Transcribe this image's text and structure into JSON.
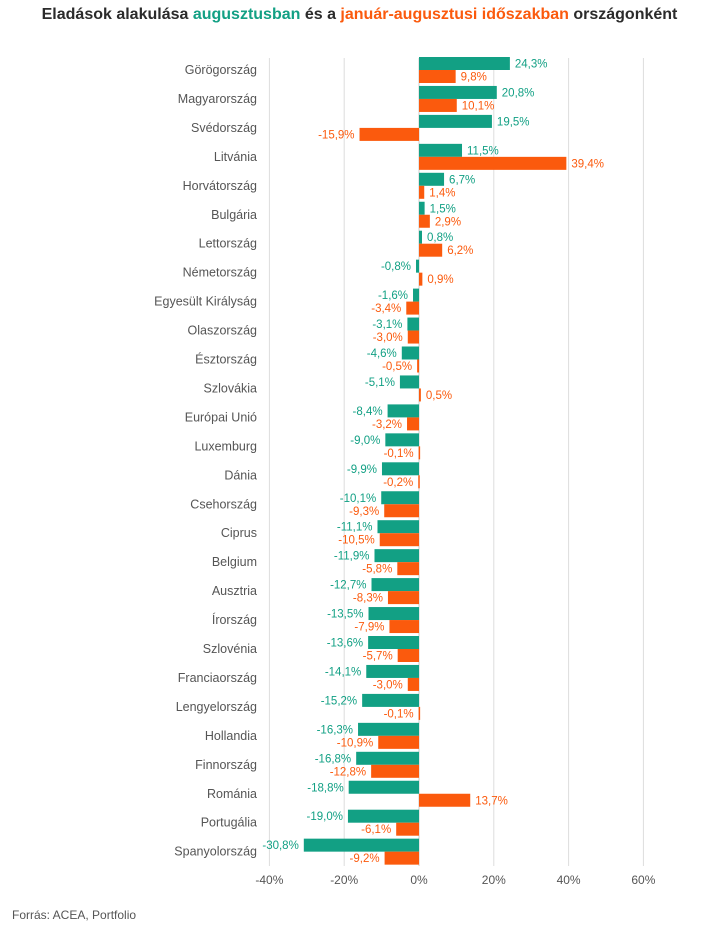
{
  "title": {
    "part1": "Eladások alakulása ",
    "highlight1": "augusztusban",
    "part2": " és a ",
    "highlight2": "január-augusztusi időszakban",
    "part3": " országonként"
  },
  "source": "Forrás: ACEA, Portfolio",
  "colors": {
    "series1": "#12a084",
    "series2": "#fb5a0d",
    "grid": "#dddddd",
    "text": "#555555"
  },
  "chart_data": {
    "type": "bar",
    "orientation": "horizontal",
    "xlim": [
      -40,
      60
    ],
    "x_ticks": [
      "-40%",
      "-20%",
      "0%",
      "20%",
      "40%",
      "60%"
    ],
    "grid": true,
    "categories": [
      "Görögország",
      "Magyarország",
      "Svédország",
      "Litvánia",
      "Horvátország",
      "Bulgária",
      "Lettország",
      "Németország",
      "Egyesült Királyság",
      "Olaszország",
      "Észtország",
      "Szlovákia",
      "Európai Unió",
      "Luxemburg",
      "Dánia",
      "Csehország",
      "Ciprus",
      "Belgium",
      "Ausztria",
      "Írország",
      "Szlovénia",
      "Franciaország",
      "Lengyelország",
      "Hollandia",
      "Finnország",
      "Románia",
      "Portugália",
      "Spanyolország"
    ],
    "series": [
      {
        "values": [
          24.3,
          20.8,
          19.5,
          11.5,
          6.7,
          1.5,
          0.8,
          -0.8,
          -1.6,
          -3.1,
          -4.6,
          -5.1,
          -8.4,
          -9.0,
          -9.9,
          -10.1,
          -11.1,
          -11.9,
          -12.7,
          -13.5,
          -13.6,
          -14.1,
          -15.2,
          -16.3,
          -16.8,
          -18.8,
          -19.0,
          -30.8
        ],
        "labels": [
          "24,3%",
          "20,8%",
          "19,5%",
          "11,5%",
          "6,7%",
          "1,5%",
          "0,8%",
          "-0,8%",
          "-1,6%",
          "-3,1%",
          "-4,6%",
          "-5,1%",
          "-8,4%",
          "-9,0%",
          "-9,9%",
          "-10,1%",
          "-11,1%",
          "-11,9%",
          "-12,7%",
          "-13,5%",
          "-13,6%",
          "-14,1%",
          "-15,2%",
          "-16,3%",
          "-16,8%",
          "-18,8%",
          "-19,0%",
          "-30,8%"
        ]
      },
      {
        "values": [
          9.8,
          10.1,
          -15.9,
          39.4,
          1.4,
          2.9,
          6.2,
          0.9,
          -3.4,
          -3.0,
          -0.5,
          0.5,
          -3.2,
          -0.1,
          -0.2,
          -9.3,
          -10.5,
          -5.8,
          -8.3,
          -7.9,
          -5.7,
          -3.0,
          -0.1,
          -10.9,
          -12.8,
          13.7,
          -6.1,
          -9.2
        ],
        "labels": [
          "9,8%",
          "10,1%",
          "-15,9%",
          "39,4%",
          "1,4%",
          "2,9%",
          "6,2%",
          "0,9%",
          "-3,4%",
          "-3,0%",
          "-0,5%",
          "0,5%",
          "-3,2%",
          "-0,1%",
          "-0,2%",
          "-9,3%",
          "-10,5%",
          "-5,8%",
          "-8,3%",
          "-7,9%",
          "-5,7%",
          "-3,0%",
          "-0,1%",
          "-10,9%",
          "-12,8%",
          "13,7%",
          "-6,1%",
          "-9,2%"
        ]
      }
    ]
  }
}
